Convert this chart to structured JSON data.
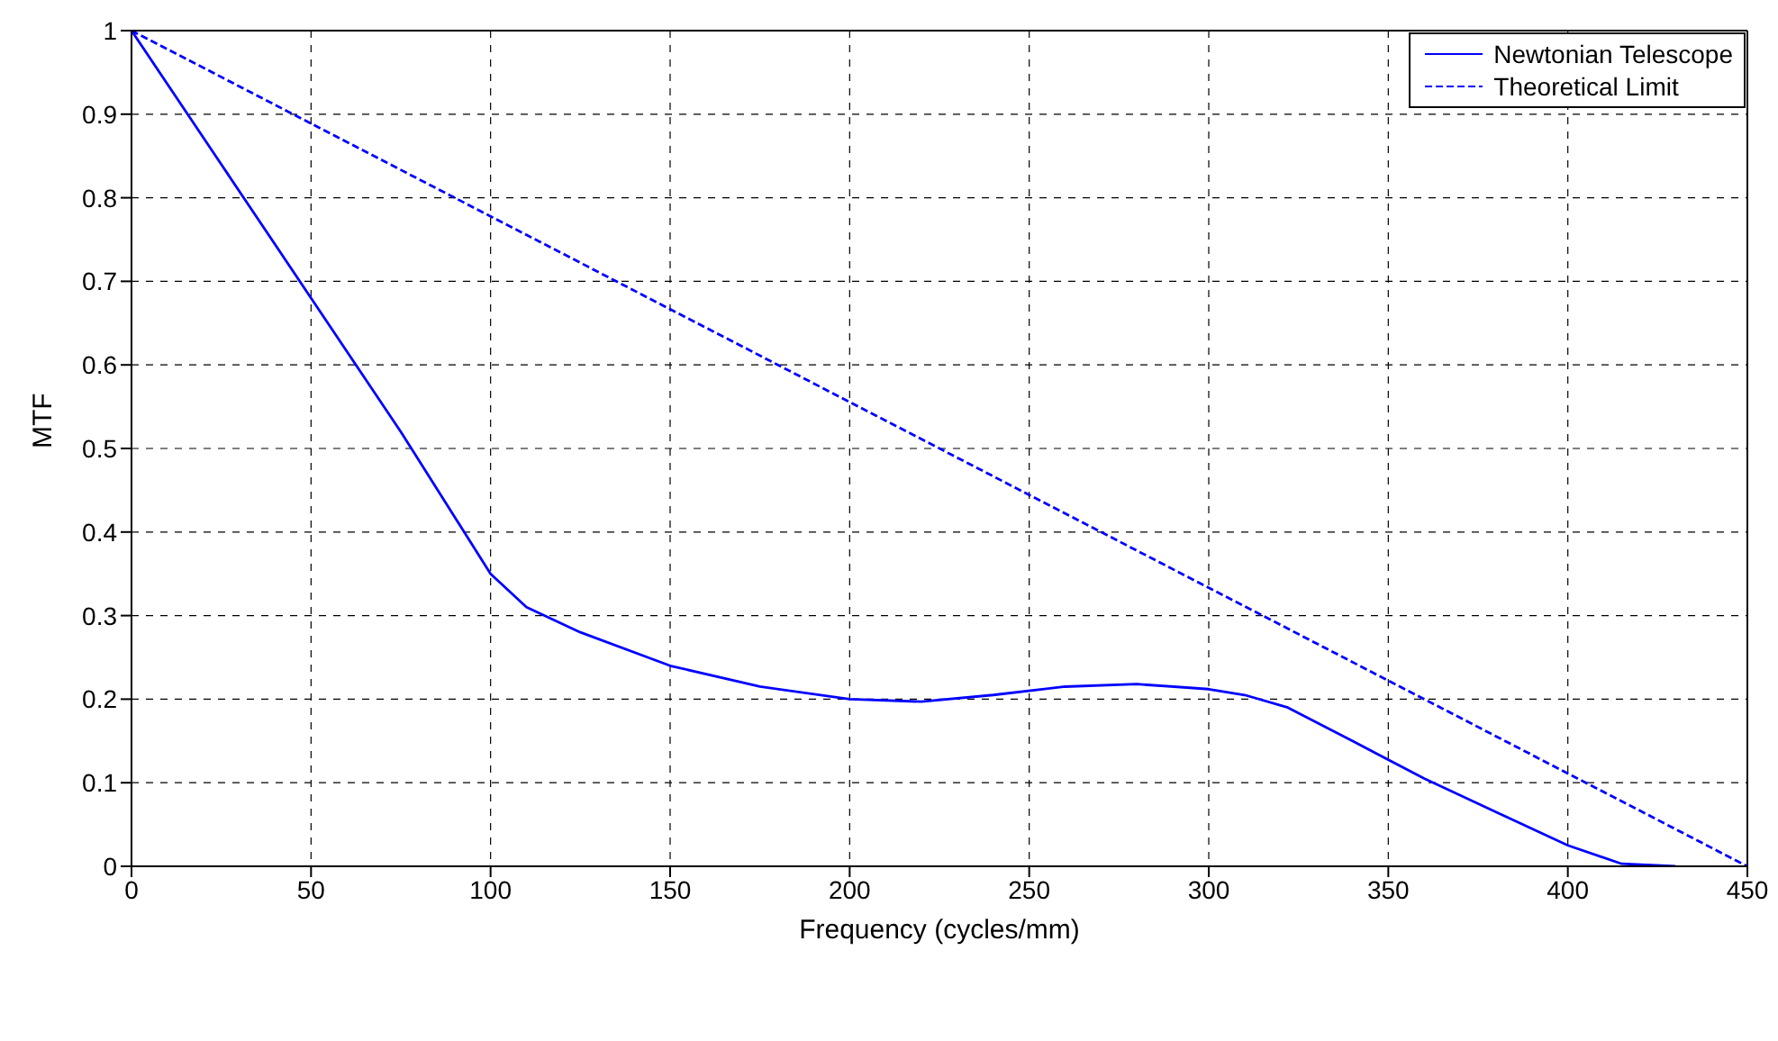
{
  "chart_data": {
    "type": "line",
    "xlabel": "Frequency (cycles/mm)",
    "ylabel": "MTF",
    "xlim": [
      0,
      450
    ],
    "ylim": [
      0,
      1
    ],
    "xticks": [
      0,
      50,
      100,
      150,
      200,
      250,
      300,
      350,
      400,
      450
    ],
    "yticks": [
      0,
      0.1,
      0.2,
      0.3,
      0.4,
      0.5,
      0.6,
      0.7,
      0.8,
      0.9,
      1
    ],
    "grid": true,
    "legend": "top right",
    "marker": "none",
    "series": [
      {
        "name": "Newtonian Telescope",
        "color": "#0000ff",
        "line_style": "solid",
        "x": [
          0,
          25,
          50,
          75,
          100,
          110,
          125,
          150,
          175,
          200,
          220,
          240,
          260,
          280,
          300,
          310,
          322,
          340,
          360,
          380,
          400,
          415,
          430
        ],
        "values": [
          1,
          0.84,
          0.68,
          0.52,
          0.35,
          0.31,
          0.28,
          0.24,
          0.215,
          0.2,
          0.197,
          0.205,
          0.215,
          0.218,
          0.212,
          0.205,
          0.19,
          0.15,
          0.105,
          0.065,
          0.025,
          0.003,
          0
        ]
      },
      {
        "name": "Theoretical Limit",
        "color": "#0000ff",
        "line_style": "dashed",
        "x": [
          0,
          450
        ],
        "values": [
          1,
          0
        ]
      }
    ]
  }
}
